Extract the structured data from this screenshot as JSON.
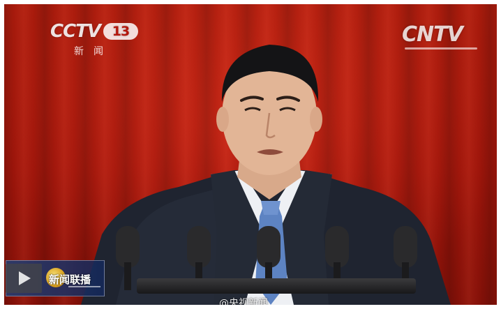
{
  "channel_logo": {
    "brand": "CCTV",
    "number": "13",
    "subtitle": "新闻"
  },
  "network_logo": {
    "text": "CNTV"
  },
  "program_badge": {
    "label": "新闻联播",
    "icon": "play-icon"
  },
  "watermark": {
    "text": "@央视新闻"
  },
  "colors": {
    "curtain": "#b4170d",
    "suit": "#1f2430",
    "tie": "#5d83c2"
  }
}
